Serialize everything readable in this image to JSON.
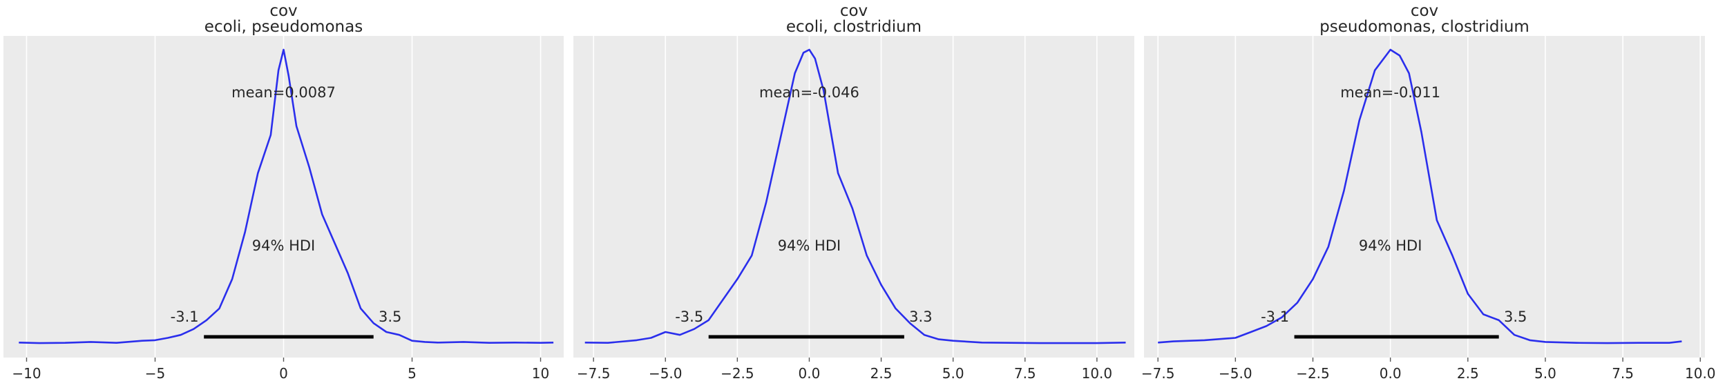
{
  "chart_data": [
    {
      "type": "line",
      "title": "cov",
      "subtitle": "ecoli, pseudomonas",
      "xlabel": "",
      "ylabel": "",
      "xlim": [
        -10.9,
        10.9
      ],
      "xticks": [
        -10,
        -5,
        0,
        5,
        10
      ],
      "xtick_labels": [
        "−10",
        "−5",
        "0",
        "5",
        "10"
      ],
      "grid": true,
      "mean_label": "mean=0.0087",
      "hdi_label": "94% HDI",
      "hdi": [
        -3.1,
        3.5
      ],
      "hdi_low_label": "-3.1",
      "hdi_high_label": "3.5",
      "series": [
        {
          "x": [
            -10.3,
            -9.5,
            -8.5,
            -7.5,
            -6.5,
            -5.5,
            -5.0,
            -4.5,
            -4.0,
            -3.5,
            -3.0,
            -2.5,
            -2.0,
            -1.5,
            -1.0,
            -0.5,
            -0.2,
            0.0,
            0.2,
            0.5,
            1.0,
            1.5,
            2.0,
            2.5,
            3.0,
            3.5,
            4.0,
            4.5,
            5.0,
            5.5,
            6.0,
            7.0,
            8.0,
            9.0,
            10.0,
            10.5
          ],
          "y": [
            0.004,
            0.002,
            0.003,
            0.006,
            0.003,
            0.01,
            0.012,
            0.02,
            0.03,
            0.05,
            0.08,
            0.12,
            0.22,
            0.38,
            0.58,
            0.71,
            0.93,
            1.0,
            0.91,
            0.74,
            0.6,
            0.44,
            0.34,
            0.24,
            0.12,
            0.07,
            0.04,
            0.03,
            0.01,
            0.006,
            0.004,
            0.006,
            0.003,
            0.004,
            0.003,
            0.004
          ]
        }
      ]
    },
    {
      "type": "line",
      "title": "cov",
      "subtitle": "ecoli, clostridium",
      "xlabel": "",
      "ylabel": "",
      "xlim": [
        -8.2,
        11.3
      ],
      "xticks": [
        -7.5,
        -5.0,
        -2.5,
        0.0,
        2.5,
        5.0,
        7.5,
        10.0
      ],
      "xtick_labels": [
        "−7.5",
        "−5.0",
        "−2.5",
        "0.0",
        "2.5",
        "5.0",
        "7.5",
        "10.0"
      ],
      "grid": true,
      "mean_label": "mean=-0.046",
      "hdi_label": "94% HDI",
      "hdi": [
        -3.5,
        3.3
      ],
      "hdi_low_label": "-3.5",
      "hdi_high_label": "3.3",
      "series": [
        {
          "x": [
            -7.8,
            -7.0,
            -6.0,
            -5.5,
            -5.0,
            -4.5,
            -4.0,
            -3.5,
            -3.0,
            -2.5,
            -2.0,
            -1.5,
            -1.0,
            -0.5,
            -0.2,
            0.0,
            0.2,
            0.5,
            1.0,
            1.5,
            2.0,
            2.5,
            3.0,
            3.5,
            4.0,
            4.5,
            5.0,
            6.0,
            7.0,
            8.0,
            9.0,
            10.0,
            11.0
          ],
          "y": [
            0.004,
            0.003,
            0.012,
            0.02,
            0.04,
            0.03,
            0.05,
            0.08,
            0.15,
            0.22,
            0.3,
            0.48,
            0.7,
            0.92,
            0.99,
            1.0,
            0.97,
            0.86,
            0.58,
            0.46,
            0.3,
            0.2,
            0.12,
            0.07,
            0.03,
            0.015,
            0.01,
            0.004,
            0.003,
            0.002,
            0.002,
            0.002,
            0.004
          ]
        }
      ]
    },
    {
      "type": "line",
      "title": "cov",
      "subtitle": "pseudomonas, clostridium",
      "xlabel": "",
      "ylabel": "",
      "xlim": [
        -7.95,
        10.15
      ],
      "xticks": [
        -7.5,
        -5.0,
        -2.5,
        0.0,
        2.5,
        5.0,
        7.5,
        10.0
      ],
      "xtick_labels": [
        "−7.5",
        "−5.0",
        "−2.5",
        "0.0",
        "2.5",
        "5.0",
        "7.5",
        "10.0"
      ],
      "grid": true,
      "mean_label": "mean=-0.011",
      "hdi_label": "94% HDI",
      "hdi": [
        -3.1,
        3.5
      ],
      "hdi_low_label": "-3.1",
      "hdi_high_label": "3.5",
      "series": [
        {
          "x": [
            -7.5,
            -7.0,
            -6.0,
            -5.0,
            -4.5,
            -4.0,
            -3.5,
            -3.0,
            -2.5,
            -2.0,
            -1.5,
            -1.0,
            -0.5,
            0.0,
            0.3,
            0.6,
            1.0,
            1.5,
            2.0,
            2.5,
            3.0,
            3.5,
            4.0,
            4.5,
            5.0,
            6.0,
            7.0,
            8.0,
            9.0,
            9.4
          ],
          "y": [
            0.004,
            0.008,
            0.012,
            0.02,
            0.04,
            0.06,
            0.09,
            0.14,
            0.22,
            0.33,
            0.52,
            0.76,
            0.93,
            1.0,
            0.98,
            0.92,
            0.72,
            0.42,
            0.3,
            0.17,
            0.1,
            0.08,
            0.03,
            0.012,
            0.006,
            0.003,
            0.002,
            0.003,
            0.003,
            0.008
          ]
        }
      ]
    }
  ]
}
